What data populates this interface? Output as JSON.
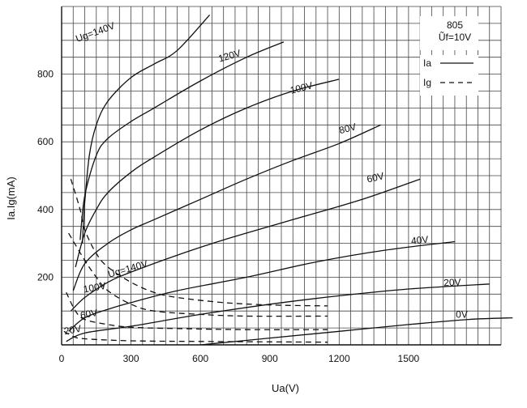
{
  "chart_data": {
    "type": "line",
    "title": "",
    "xlabel": "Ua(V)",
    "ylabel": "Ia.Ig(mA)",
    "xlim": [
      0,
      1900
    ],
    "ylim": [
      0,
      1000
    ],
    "x_ticks": [
      0,
      300,
      600,
      900,
      1200,
      1500
    ],
    "y_ticks": [
      200,
      400,
      600,
      800
    ],
    "grid": true,
    "legend": {
      "title": "805",
      "subtitle": "Ũf=10V",
      "position": "top-right",
      "items": [
        {
          "label": "Ia",
          "style": "solid"
        },
        {
          "label": "Ig",
          "style": "dashed"
        }
      ]
    },
    "series": [
      {
        "kind": "Ia",
        "label": "Ug=140V",
        "style": "solid",
        "points": [
          [
            90,
            300
          ],
          [
            100,
            420
          ],
          [
            120,
            560
          ],
          [
            150,
            650
          ],
          [
            200,
            720
          ],
          [
            300,
            790
          ],
          [
            400,
            830
          ],
          [
            500,
            870
          ],
          [
            640,
            975
          ]
        ]
      },
      {
        "kind": "Ia",
        "label": "120V",
        "style": "solid",
        "points": [
          [
            80,
            310
          ],
          [
            100,
            440
          ],
          [
            150,
            560
          ],
          [
            200,
            610
          ],
          [
            300,
            660
          ],
          [
            400,
            700
          ],
          [
            600,
            780
          ],
          [
            800,
            850
          ],
          [
            960,
            895
          ]
        ]
      },
      {
        "kind": "Ia",
        "label": "100V",
        "style": "solid",
        "points": [
          [
            60,
            230
          ],
          [
            100,
            330
          ],
          [
            150,
            400
          ],
          [
            200,
            450
          ],
          [
            300,
            510
          ],
          [
            400,
            555
          ],
          [
            600,
            635
          ],
          [
            800,
            700
          ],
          [
            1000,
            750
          ],
          [
            1200,
            785
          ]
        ]
      },
      {
        "kind": "Ia",
        "label": "80V",
        "style": "solid",
        "points": [
          [
            50,
            160
          ],
          [
            100,
            240
          ],
          [
            200,
            300
          ],
          [
            300,
            340
          ],
          [
            400,
            370
          ],
          [
            600,
            430
          ],
          [
            800,
            490
          ],
          [
            1000,
            545
          ],
          [
            1200,
            595
          ],
          [
            1380,
            650
          ]
        ]
      },
      {
        "kind": "Ia",
        "label": "60V",
        "style": "solid",
        "points": [
          [
            40,
            100
          ],
          [
            100,
            140
          ],
          [
            200,
            185
          ],
          [
            300,
            215
          ],
          [
            500,
            265
          ],
          [
            700,
            310
          ],
          [
            1000,
            370
          ],
          [
            1300,
            430
          ],
          [
            1550,
            490
          ]
        ]
      },
      {
        "kind": "Ia",
        "label": "40V",
        "style": "solid",
        "points": [
          [
            30,
            40
          ],
          [
            100,
            80
          ],
          [
            200,
            105
          ],
          [
            300,
            125
          ],
          [
            500,
            160
          ],
          [
            800,
            200
          ],
          [
            1100,
            245
          ],
          [
            1400,
            280
          ],
          [
            1700,
            305
          ]
        ]
      },
      {
        "kind": "Ia",
        "label": "20V",
        "style": "solid",
        "points": [
          [
            20,
            10
          ],
          [
            100,
            35
          ],
          [
            300,
            55
          ],
          [
            600,
            90
          ],
          [
            900,
            120
          ],
          [
            1200,
            145
          ],
          [
            1500,
            165
          ],
          [
            1850,
            180
          ]
        ]
      },
      {
        "kind": "Ia",
        "label": "0V",
        "style": "solid",
        "points": [
          [
            600,
            0
          ],
          [
            900,
            20
          ],
          [
            1200,
            40
          ],
          [
            1500,
            60
          ],
          [
            1760,
            75
          ],
          [
            1950,
            80
          ]
        ]
      },
      {
        "kind": "Ig",
        "label": "Ug=140V",
        "style": "dashed",
        "points": [
          [
            40,
            490
          ],
          [
            80,
            400
          ],
          [
            100,
            340
          ],
          [
            150,
            270
          ],
          [
            200,
            230
          ],
          [
            300,
            185
          ],
          [
            400,
            155
          ],
          [
            500,
            140
          ],
          [
            700,
            125
          ],
          [
            900,
            118
          ],
          [
            1150,
            115
          ]
        ]
      },
      {
        "kind": "Ig",
        "label": "100V",
        "style": "dashed",
        "points": [
          [
            30,
            330
          ],
          [
            100,
            250
          ],
          [
            150,
            200
          ],
          [
            200,
            160
          ],
          [
            300,
            120
          ],
          [
            400,
            100
          ],
          [
            600,
            90
          ],
          [
            800,
            85
          ],
          [
            1150,
            85
          ]
        ]
      },
      {
        "kind": "Ig",
        "label": "60V",
        "style": "dashed",
        "points": [
          [
            20,
            155
          ],
          [
            60,
            100
          ],
          [
            100,
            75
          ],
          [
            200,
            60
          ],
          [
            300,
            52
          ],
          [
            500,
            48
          ],
          [
            800,
            45
          ],
          [
            1150,
            45
          ]
        ]
      },
      {
        "kind": "Ig",
        "label": "20V",
        "style": "dashed",
        "points": [
          [
            10,
            40
          ],
          [
            50,
            25
          ],
          [
            100,
            18
          ],
          [
            300,
            12
          ],
          [
            600,
            10
          ],
          [
            1150,
            8
          ]
        ]
      }
    ],
    "annotations": [
      {
        "text": "Ug=140V",
        "x": 150,
        "y": 915,
        "rotate": -20
      },
      {
        "text": "120V",
        "x": 730,
        "y": 845,
        "rotate": -16
      },
      {
        "text": "100V",
        "x": 1040,
        "y": 750,
        "rotate": -14
      },
      {
        "text": "80V",
        "x": 1240,
        "y": 630,
        "rotate": -14
      },
      {
        "text": "60V",
        "x": 1360,
        "y": 485,
        "rotate": -13
      },
      {
        "text": "40V",
        "x": 1550,
        "y": 300,
        "rotate": -6
      },
      {
        "text": "20V",
        "x": 1690,
        "y": 175,
        "rotate": -3
      },
      {
        "text": "0V",
        "x": 1730,
        "y": 80,
        "rotate": 0
      },
      {
        "text": "Ug=140V",
        "x": 290,
        "y": 215,
        "rotate": -16
      },
      {
        "text": "100V",
        "x": 145,
        "y": 160,
        "rotate": -10
      },
      {
        "text": "60V",
        "x": 120,
        "y": 82,
        "rotate": -10
      },
      {
        "text": "20V",
        "x": 50,
        "y": 35,
        "rotate": -10
      }
    ]
  }
}
